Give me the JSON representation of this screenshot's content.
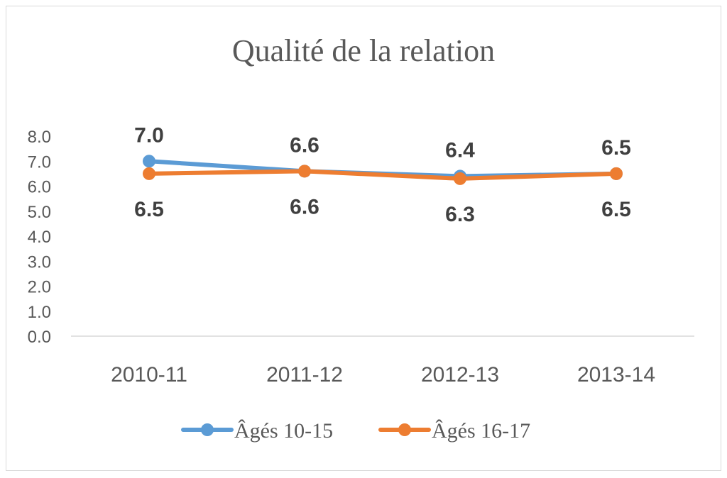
{
  "chart_data": {
    "type": "line",
    "title": "Qualité de la relation",
    "categories": [
      "2010-11",
      "2011-12",
      "2012-13",
      "2013-14"
    ],
    "yticks": [
      "0.0",
      "1.0",
      "2.0",
      "3.0",
      "4.0",
      "5.0",
      "6.0",
      "7.0",
      "8.0"
    ],
    "ylim": [
      0,
      8
    ],
    "grid": false,
    "legend_position": "bottom",
    "series": [
      {
        "name": "Âgés 10-15",
        "color": "#5b9bd5",
        "values": [
          7.0,
          6.6,
          6.4,
          6.5
        ],
        "labels": [
          "7.0",
          "6.6",
          "6.4",
          "6.5"
        ]
      },
      {
        "name": "Âgés 16-17",
        "color": "#ed7d31",
        "values": [
          6.5,
          6.6,
          6.3,
          6.5
        ],
        "labels": [
          "6.5",
          "6.6",
          "6.3",
          "6.5"
        ]
      }
    ]
  }
}
